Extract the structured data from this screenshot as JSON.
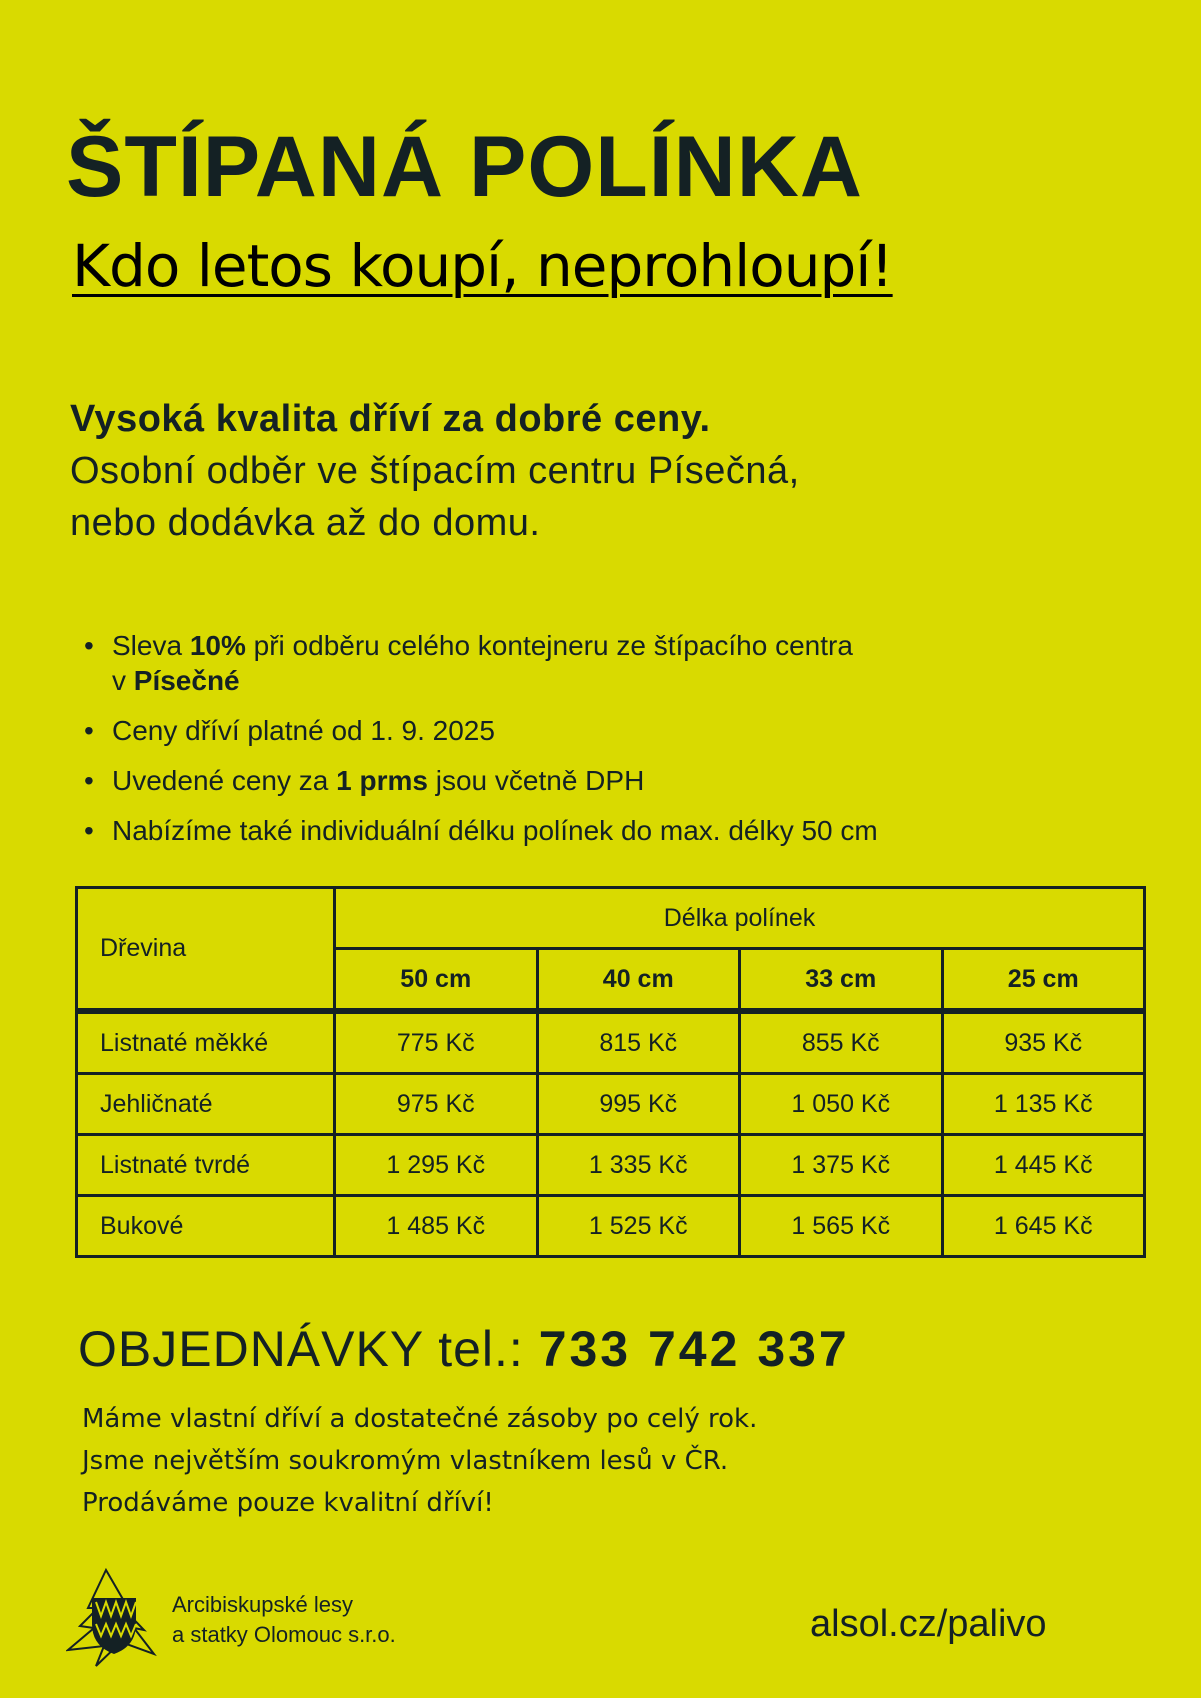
{
  "title": "ŠTÍPANÁ POLÍNKA",
  "slogan": "Kdo letos koupí, neprohloupí!",
  "intro": {
    "bold": "Vysoká kvalita dříví za dobré ceny.",
    "line1": "Osobní odběr ve štípacím centru Písečná,",
    "line2": "nebo dodávka až do domu."
  },
  "bullets": [
    {
      "a": "Sleva ",
      "b": "10%",
      "c": " při odběru celého kontejneru ze štípacího centra",
      "d": "v ",
      "e": "Písečné"
    },
    {
      "a": "Ceny dříví platné od 1. 9. 2025"
    },
    {
      "a": "Uvedené ceny za ",
      "b": "1 prms",
      "c": " jsou včetně DPH"
    },
    {
      "a": "Nabízíme také individuální délku polínek do max. délky 50 cm"
    }
  ],
  "table": {
    "col_header": "Dřevina",
    "group_header": "Délka polínek",
    "lengths": [
      "50 cm",
      "40 cm",
      "33 cm",
      "25 cm"
    ],
    "rows": [
      {
        "name": "Listnaté měkké",
        "prices": [
          "775 Kč",
          "815 Kč",
          "855 Kč",
          "935 Kč"
        ]
      },
      {
        "name": "Jehličnaté",
        "prices": [
          "975 Kč",
          "995 Kč",
          "1 050 Kč",
          "1 135 Kč"
        ]
      },
      {
        "name": "Listnaté tvrdé",
        "prices": [
          "1 295 Kč",
          "1 335 Kč",
          "1 375 Kč",
          "1 445 Kč"
        ]
      },
      {
        "name": "Bukové",
        "prices": [
          "1 485 Kč",
          "1 525 Kč",
          "1 565 Kč",
          "1 645 Kč"
        ]
      }
    ]
  },
  "order": {
    "label": "OBJEDNÁVKY tel.: ",
    "phone": "733 742 337"
  },
  "footer": [
    "Máme vlastní dříví a dostatečné zásoby po celý rok.",
    "Jsme největším soukromým vlastníkem lesů v ČR.",
    "Prodáváme pouze kvalitní dříví!"
  ],
  "company": {
    "line1": "Arcibiskupské lesy",
    "line2": "a statky Olomouc s.r.o."
  },
  "url": "alsol.cz/palivo",
  "colors": {
    "background": "#d9da00",
    "text": "#142124"
  }
}
